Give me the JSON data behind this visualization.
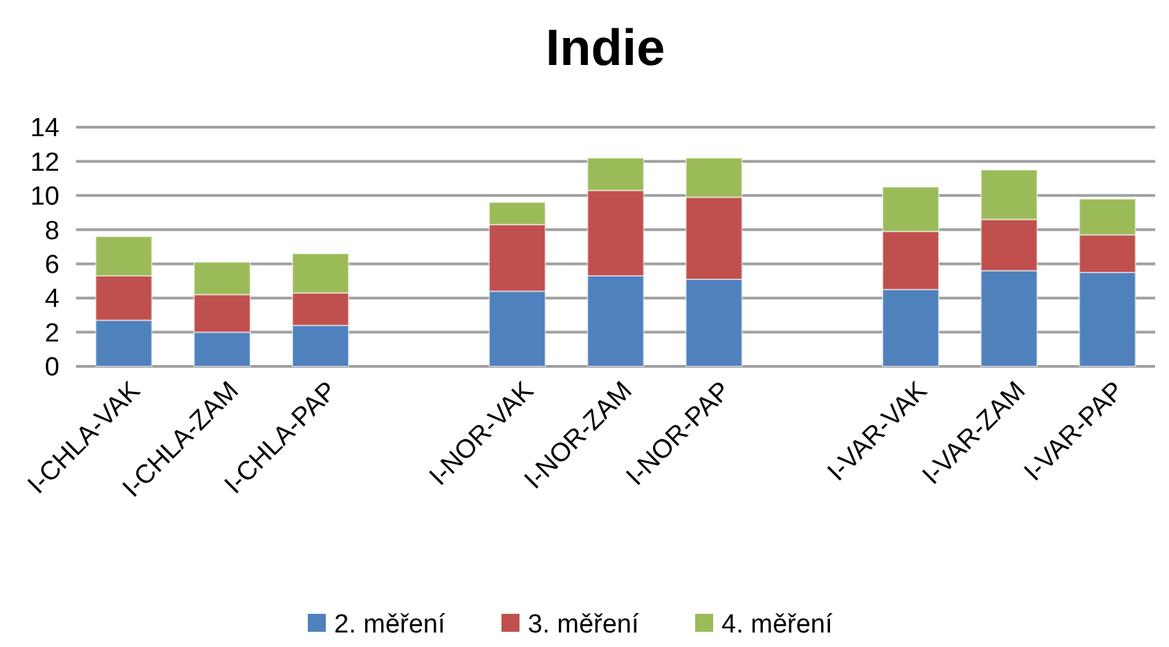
{
  "chart_data": {
    "type": "bar",
    "title": "Indie",
    "stacked": true,
    "categories": [
      "I-CHLA-VAK",
      "I-CHLA-ZAM",
      "I-CHLA-PAP",
      null,
      "I-NOR-VAK",
      "I-NOR-ZAM",
      "I-NOR-PAP",
      null,
      "I-VAR-VAK",
      "I-VAR-ZAM",
      "I-VAR-PAP"
    ],
    "series": [
      {
        "name": "2. měření",
        "color": "#4f81bd",
        "values": [
          2.7,
          2.0,
          2.4,
          null,
          4.4,
          5.3,
          5.1,
          null,
          4.5,
          5.6,
          5.5
        ]
      },
      {
        "name": "3. měření",
        "color": "#c0504d",
        "values": [
          2.6,
          2.2,
          1.9,
          null,
          3.9,
          5.0,
          4.8,
          null,
          3.4,
          3.0,
          2.2
        ]
      },
      {
        "name": "4. měření",
        "color": "#9bbb59",
        "values": [
          2.3,
          1.9,
          2.3,
          null,
          1.3,
          1.9,
          2.3,
          null,
          2.6,
          2.9,
          2.1
        ]
      }
    ],
    "ylim": [
      0,
      14
    ],
    "yticks": [
      0,
      2,
      4,
      6,
      8,
      10,
      12,
      14
    ],
    "grid": "y",
    "legend": "bottom"
  }
}
